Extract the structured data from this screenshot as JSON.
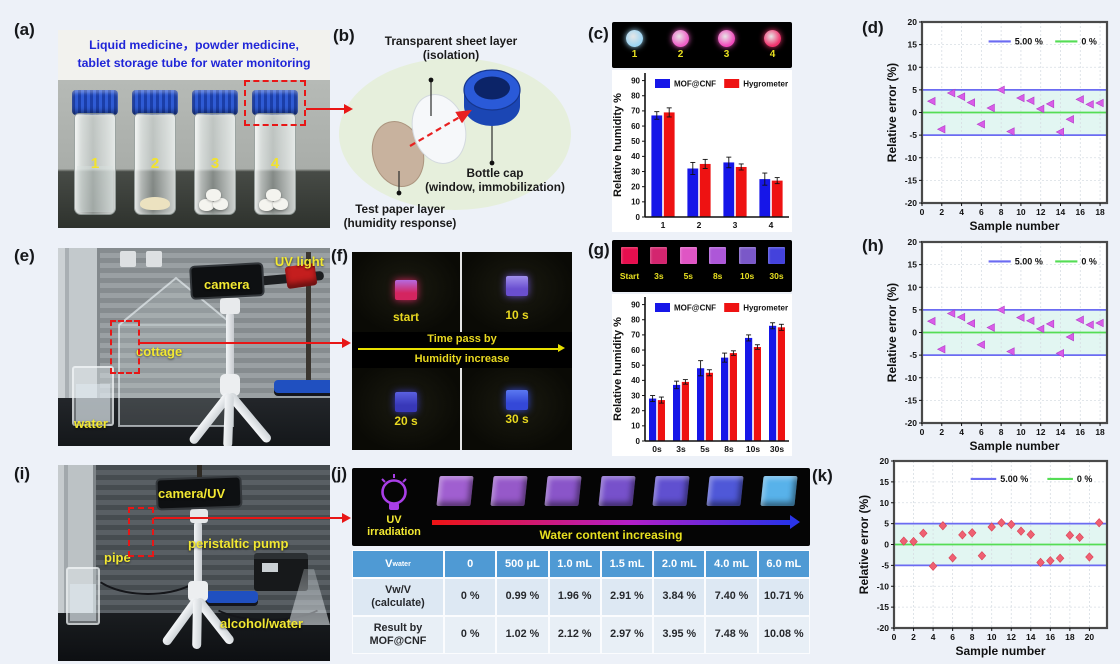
{
  "figure": {
    "bg": "#edf1f8",
    "panel_labels": {
      "a": "(a)",
      "b": "(b)",
      "c": "(c)",
      "d": "(d)",
      "e": "(e)",
      "f": "(f)",
      "g": "(g)",
      "h": "(h)",
      "i": "(i)",
      "j": "(j)",
      "k": "(k)"
    }
  },
  "panel_a": {
    "title_line1": "Liquid medicine，powder medicine,",
    "title_line2": "tablet storage tube for water monitoring",
    "vials": [
      {
        "num": "1",
        "content": "liquid"
      },
      {
        "num": "2",
        "content": "powder"
      },
      {
        "num": "3",
        "content": "tablet"
      },
      {
        "num": "4",
        "content": "tablet"
      }
    ]
  },
  "panel_b": {
    "label_sheet_1": "Transparent sheet layer",
    "label_sheet_2": "(isolation)",
    "label_cap_1": "Bottle cap",
    "label_cap_2": "(window, immobilization)",
    "label_paper_1": "Test paper layer",
    "label_paper_2": "(humidity response)"
  },
  "panel_c_strip": {
    "dots": [
      {
        "label": "1",
        "color": "#9ed6f4"
      },
      {
        "label": "2",
        "color": "#ef5ec8"
      },
      {
        "label": "3",
        "color": "#f04abc"
      },
      {
        "label": "4",
        "color": "#f2336e"
      }
    ]
  },
  "panel_e": {
    "labels": {
      "uv": "UV light",
      "camera": "camera",
      "cottage": "cottage",
      "water": "water"
    }
  },
  "panel_f": {
    "frames": [
      {
        "label": "start",
        "c1": "#b56ae0",
        "c2": "#d42560"
      },
      {
        "label": "10 s",
        "c1": "#a090ec",
        "c2": "#6a4fd0"
      },
      {
        "label": "20 s",
        "c1": "#5a60e0",
        "c2": "#3838b8"
      },
      {
        "label": "30 s",
        "c1": "#5a78f0",
        "c2": "#3448d8"
      }
    ],
    "band_line1": "Time pass by",
    "band_line2": "Humidity increase"
  },
  "panel_g_strip": {
    "squares": [
      {
        "label": "Start",
        "color": "#e60e4e"
      },
      {
        "label": "3s",
        "color": "#d3256f"
      },
      {
        "label": "5s",
        "color": "#df55c4"
      },
      {
        "label": "8s",
        "color": "#ad57d8"
      },
      {
        "label": "10s",
        "color": "#7a58c8"
      },
      {
        "label": "30s",
        "color": "#4442dc"
      }
    ]
  },
  "panel_i": {
    "labels": {
      "camera": "camera/UV",
      "pipe": "pipe",
      "pump": "peristaltic pump",
      "flask": "alcohol/water"
    }
  },
  "panel_j": {
    "lamp_line1": "UV",
    "lamp_line2": "irradiation",
    "arrow_label": "Water content increasing",
    "squares": [
      "#a05fd0",
      "#9659c9",
      "#8a55c9",
      "#7751cb",
      "#6050d0",
      "#4f58d8",
      "#58b2ea"
    ],
    "table": {
      "header_main": "V",
      "header_sub": "water",
      "header_cols": [
        "0",
        "500 μL",
        "1.0 mL",
        "1.5 mL",
        "2.0 mL",
        "4.0 mL",
        "6.0 mL"
      ],
      "rows": [
        {
          "label1": "Vw/V",
          "label2": "(calculate)",
          "values": [
            "0 %",
            "0.99 %",
            "1.96 %",
            "2.91 %",
            "3.84 %",
            "7.40 %",
            "10.71 %"
          ]
        },
        {
          "label1": "Result by",
          "label2": "MOF@CNF",
          "values": [
            "0 %",
            "1.02 %",
            "2.12 %",
            "2.97 %",
            "3.95 %",
            "7.48 %",
            "10.08 %"
          ]
        }
      ]
    }
  },
  "chart_data": [
    {
      "id": "c",
      "type": "bar",
      "ylabel": "Relative humidity %",
      "categories": [
        "1",
        "2",
        "3",
        "4"
      ],
      "series": [
        {
          "name": "MOF@CNF",
          "color": "#1616e8",
          "values": [
            67,
            32,
            36,
            25
          ],
          "errors": [
            2.5,
            4,
            3.5,
            4
          ]
        },
        {
          "name": "Hygrometer",
          "color": "#ee1212",
          "values": [
            69,
            35,
            33,
            24
          ],
          "errors": [
            3,
            3,
            2,
            2
          ]
        }
      ],
      "ylim": [
        0,
        95
      ],
      "ytick_step": 10,
      "ytick_max": 90,
      "legend_position": "top-inside"
    },
    {
      "id": "g",
      "type": "bar",
      "ylabel": "Relative humidity %",
      "categories": [
        "0s",
        "3s",
        "5s",
        "8s",
        "10s",
        "30s"
      ],
      "series": [
        {
          "name": "MOF@CNF",
          "color": "#1616e8",
          "values": [
            28,
            37,
            48,
            55,
            68,
            76
          ],
          "errors": [
            2,
            2.5,
            5,
            3,
            2,
            2
          ]
        },
        {
          "name": "Hygrometer",
          "color": "#ee1212",
          "values": [
            27,
            39,
            45,
            58,
            62,
            75
          ],
          "errors": [
            2,
            1.5,
            2,
            1.5,
            1.5,
            2
          ]
        }
      ],
      "ylim": [
        0,
        95
      ],
      "ytick_step": 10,
      "ytick_max": 90,
      "legend_position": "top-inside"
    },
    {
      "id": "d",
      "type": "scatter",
      "xlabel": "Sample number",
      "ylabel": "Relative error (%)",
      "x": [
        1,
        2,
        3,
        4,
        5,
        6,
        7,
        8,
        9,
        10,
        11,
        12,
        13,
        14,
        15,
        16,
        17,
        18
      ],
      "y": [
        2.5,
        -3.7,
        4.3,
        3.5,
        2.2,
        -2.6,
        1.0,
        5.0,
        -4.2,
        3.2,
        2.6,
        0.8,
        1.9,
        -4.3,
        -1.5,
        2.9,
        1.8,
        2.1
      ],
      "marker": "triangle",
      "marker_color": "#d95ce8",
      "xlim": [
        0,
        18.7
      ],
      "ylim": [
        -20,
        20
      ],
      "xtick_step": 2,
      "xtick_max": 18,
      "ytick_step": 5,
      "band": {
        "from": -5,
        "to": 5,
        "color": "#e2f6f2"
      },
      "lines": [
        {
          "y": 5,
          "color": "#6b6bf2"
        },
        {
          "y": -5,
          "color": "#6b6bf2"
        },
        {
          "y": 0,
          "color": "#55dd55"
        }
      ],
      "legend": [
        {
          "label": "5.00 %",
          "color": "#6b6bf2"
        },
        {
          "label": "0 %",
          "color": "#55dd55"
        }
      ],
      "grid": true
    },
    {
      "id": "h",
      "type": "scatter",
      "xlabel": "Sample number",
      "ylabel": "Relative error (%)",
      "x": [
        1,
        2,
        3,
        4,
        5,
        6,
        7,
        8,
        9,
        10,
        11,
        12,
        13,
        14,
        15,
        16,
        17,
        18
      ],
      "y": [
        2.5,
        -3.7,
        4.2,
        3.4,
        2.0,
        -2.7,
        1.1,
        5.0,
        -4.2,
        3.3,
        2.6,
        0.8,
        1.9,
        -4.6,
        -1.0,
        2.8,
        1.7,
        2.1
      ],
      "marker": "triangle",
      "marker_color": "#d95ce8",
      "xlim": [
        0,
        18.7
      ],
      "ylim": [
        -20,
        20
      ],
      "xtick_step": 2,
      "xtick_max": 18,
      "ytick_step": 5,
      "band": {
        "from": -5,
        "to": 5,
        "color": "#e2f6f2"
      },
      "lines": [
        {
          "y": 5,
          "color": "#6b6bf2"
        },
        {
          "y": -5,
          "color": "#6b6bf2"
        },
        {
          "y": 0,
          "color": "#55dd55"
        }
      ],
      "legend": [
        {
          "label": "5.00 %",
          "color": "#6b6bf2"
        },
        {
          "label": "0 %",
          "color": "#55dd55"
        }
      ],
      "grid": true
    },
    {
      "id": "k",
      "type": "scatter",
      "xlabel": "Sample number",
      "ylabel": "Relative error (%)",
      "x": [
        1,
        2,
        3,
        4,
        5,
        6,
        7,
        8,
        9,
        10,
        11,
        12,
        13,
        14,
        15,
        16,
        17,
        18,
        19,
        20,
        21
      ],
      "y": [
        0.8,
        0.7,
        2.7,
        -5.2,
        4.5,
        -3.2,
        2.3,
        2.8,
        -2.7,
        4.2,
        5.2,
        4.8,
        3.2,
        2.4,
        -4.3,
        -3.9,
        -3.3,
        2.2,
        1.7,
        -3.0,
        5.2
      ],
      "marker": "diamond",
      "marker_color": "#ef6072",
      "xlim": [
        0,
        21.8
      ],
      "ylim": [
        -20,
        20
      ],
      "xtick_step": 2,
      "xtick_max": 20,
      "ytick_step": 5,
      "band": {
        "from": -5,
        "to": 5,
        "color": "#e2f6f2"
      },
      "lines": [
        {
          "y": 5,
          "color": "#6b6bf2"
        },
        {
          "y": -5,
          "color": "#6b6bf2"
        },
        {
          "y": 0,
          "color": "#55dd55"
        }
      ],
      "legend": [
        {
          "label": "5.00 %",
          "color": "#6b6bf2"
        },
        {
          "label": "0 %",
          "color": "#55dd55"
        }
      ],
      "grid": true
    }
  ]
}
